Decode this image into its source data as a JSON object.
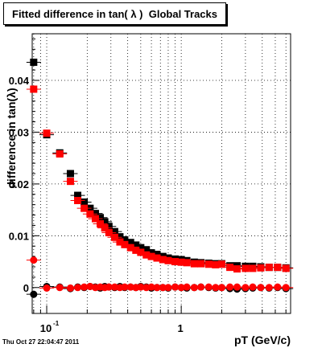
{
  "chart_data": {
    "type": "scatter",
    "title": "Fitted difference in tan( λ )  Global Tracks",
    "xlabel": "pT (GeV/c)",
    "ylabel": "difference in tan(λ)",
    "x_scale": "log",
    "xlim": [
      0.078,
      6.5
    ],
    "ylim": [
      -0.005,
      0.049
    ],
    "grid": true,
    "y_ticks": [
      {
        "value": 0,
        "label": "0"
      },
      {
        "value": 0.01,
        "label": "0.01"
      },
      {
        "value": 0.02,
        "label": "0.02"
      },
      {
        "value": 0.03,
        "label": "0.03"
      },
      {
        "value": 0.04,
        "label": "0.04"
      }
    ],
    "x_ticks": [
      {
        "value": 0.1,
        "label": "10",
        "sup": "-1"
      },
      {
        "value": 1,
        "label": "1",
        "sup": ""
      }
    ],
    "series": [
      {
        "color": "#000000",
        "marker": "square",
        "x": [
          0.08,
          0.1,
          0.125,
          0.15,
          0.17,
          0.19,
          0.21,
          0.23,
          0.25,
          0.27,
          0.29,
          0.32,
          0.35,
          0.38,
          0.42,
          0.46,
          0.5,
          0.55,
          0.6,
          0.66,
          0.73,
          0.8,
          0.9,
          1.0,
          1.1,
          1.25,
          1.4,
          1.6,
          1.8,
          2.0,
          2.3,
          2.6,
          3.0,
          3.4,
          3.9,
          4.5,
          5.2,
          6.0
        ],
        "y": [
          0.0435,
          0.0295,
          0.026,
          0.022,
          0.0178,
          0.0165,
          0.0153,
          0.0143,
          0.0135,
          0.0127,
          0.0118,
          0.0108,
          0.0098,
          0.0092,
          0.0087,
          0.0082,
          0.0077,
          0.0073,
          0.0067,
          0.0064,
          0.006,
          0.0057,
          0.0055,
          0.0054,
          0.0052,
          0.0049,
          0.0048,
          0.0047,
          0.0046,
          0.0046,
          0.0042,
          0.0042,
          0.0041,
          0.0041,
          0.004,
          0.0039,
          0.0039,
          0.0038
        ]
      },
      {
        "color": "#ff0000",
        "marker": "square",
        "x": [
          0.08,
          0.1,
          0.125,
          0.15,
          0.17,
          0.19,
          0.21,
          0.23,
          0.25,
          0.27,
          0.29,
          0.32,
          0.35,
          0.38,
          0.42,
          0.46,
          0.5,
          0.55,
          0.6,
          0.66,
          0.73,
          0.8,
          0.9,
          1.0,
          1.1,
          1.25,
          1.4,
          1.6,
          1.8,
          2.0,
          2.3,
          2.6,
          3.0,
          3.4,
          3.9,
          4.5,
          5.2,
          6.0
        ],
        "y": [
          0.0383,
          0.0298,
          0.0258,
          0.0205,
          0.0168,
          0.0153,
          0.0142,
          0.0133,
          0.0123,
          0.0115,
          0.0106,
          0.0097,
          0.0088,
          0.0083,
          0.0077,
          0.0072,
          0.0068,
          0.0063,
          0.006,
          0.0057,
          0.0054,
          0.0052,
          0.005,
          0.0049,
          0.0048,
          0.0046,
          0.0046,
          0.0045,
          0.0044,
          0.0045,
          0.0039,
          0.0036,
          0.0037,
          0.0037,
          0.0038,
          0.0039,
          0.0039,
          0.0037
        ]
      },
      {
        "color": "#000000",
        "marker": "circle",
        "x": [
          0.08,
          0.1,
          0.125,
          0.15,
          0.17,
          0.19,
          0.21,
          0.23,
          0.25,
          0.27,
          0.29,
          0.32,
          0.35,
          0.38,
          0.42,
          0.46,
          0.5,
          0.55,
          0.6,
          0.66,
          0.73,
          0.8,
          0.9,
          1.0,
          1.1,
          1.25,
          1.4,
          1.6,
          1.8,
          2.0,
          2.3,
          2.6,
          3.0,
          3.4,
          3.9,
          4.5,
          5.2,
          6.0
        ],
        "y": [
          -0.0013,
          0.0002,
          0.0001,
          -0.0002,
          0.0001,
          0.0,
          0.0002,
          0.0001,
          -0.0001,
          0.0002,
          0.0001,
          0.0,
          0.0002,
          0.0,
          0.0001,
          0.0,
          0.0002,
          0.0001,
          -0.0001,
          0.0,
          0.0,
          -0.0001,
          0.0001,
          0.0,
          -0.0001,
          0.0,
          0.0001,
          0.0,
          -0.0001,
          0.0,
          -0.0002,
          -0.0003,
          -0.0002,
          -0.0001,
          0.0,
          -0.0001,
          0.0,
          -0.0002
        ]
      },
      {
        "color": "#ff0000",
        "marker": "circle",
        "x": [
          0.08,
          0.1,
          0.125,
          0.15,
          0.17,
          0.19,
          0.21,
          0.23,
          0.25,
          0.27,
          0.29,
          0.32,
          0.35,
          0.38,
          0.42,
          0.46,
          0.5,
          0.55,
          0.6,
          0.66,
          0.73,
          0.8,
          0.9,
          1.0,
          1.1,
          1.25,
          1.4,
          1.6,
          1.8,
          2.0,
          2.3,
          2.6,
          3.0,
          3.4,
          3.9,
          4.5,
          5.2,
          6.0
        ],
        "y": [
          0.0053,
          -0.0001,
          0.0,
          -0.0001,
          0.0,
          0.0001,
          0.0002,
          0.0,
          0.0001,
          0.0,
          0.0001,
          0.0001,
          0.0,
          0.0001,
          0.0001,
          0.0,
          0.0001,
          0.0,
          0.0001,
          0.0,
          0.0,
          0.0,
          0.0001,
          0.0,
          0.0001,
          0.0,
          0.0001,
          0.0001,
          0.0,
          0.0,
          0.0001,
          0.0001,
          0.0,
          0.0001,
          0.0,
          0.0,
          0.0001,
          0.0
        ]
      }
    ]
  },
  "footer": {
    "timestamp": "Thu Oct 27 22:04:47 2011"
  }
}
